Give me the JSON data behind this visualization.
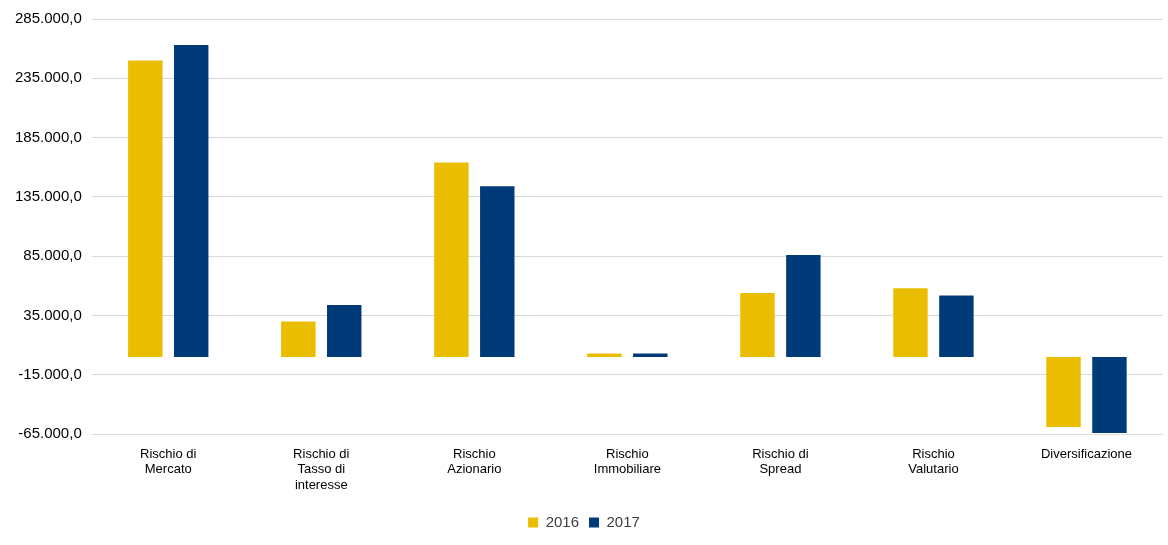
{
  "chart_data": {
    "type": "bar",
    "categories": [
      "Rischio di Mercato",
      "Rischio di Tasso di interesse",
      "Rischio Azionario",
      "Rischio Immobiliare",
      "Rischio di Spread",
      "Rischio Valutario",
      "Diversificazione"
    ],
    "series": [
      {
        "name": "2016",
        "color": "#ebbd00",
        "values": [
          250000,
          30000,
          164000,
          3000,
          54000,
          58000,
          -59000
        ]
      },
      {
        "name": "2017",
        "color": "#003a78",
        "values": [
          263000,
          44000,
          144000,
          3000,
          86000,
          52000,
          -64000
        ]
      }
    ],
    "ylim": [
      -65000,
      285000
    ],
    "yticks": [
      {
        "value": -65000,
        "label": "-65.000,0"
      },
      {
        "value": -15000,
        "label": "-15.000,0"
      },
      {
        "value": 35000,
        "label": "35.000,0"
      },
      {
        "value": 85000,
        "label": "85.000,0"
      },
      {
        "value": 135000,
        "label": "135.000,0"
      },
      {
        "value": 185000,
        "label": "185.000,0"
      },
      {
        "value": 235000,
        "label": "235.000,0"
      },
      {
        "value": 285000,
        "label": "285.000,0"
      }
    ],
    "grid": "y",
    "legend": "bottom"
  }
}
